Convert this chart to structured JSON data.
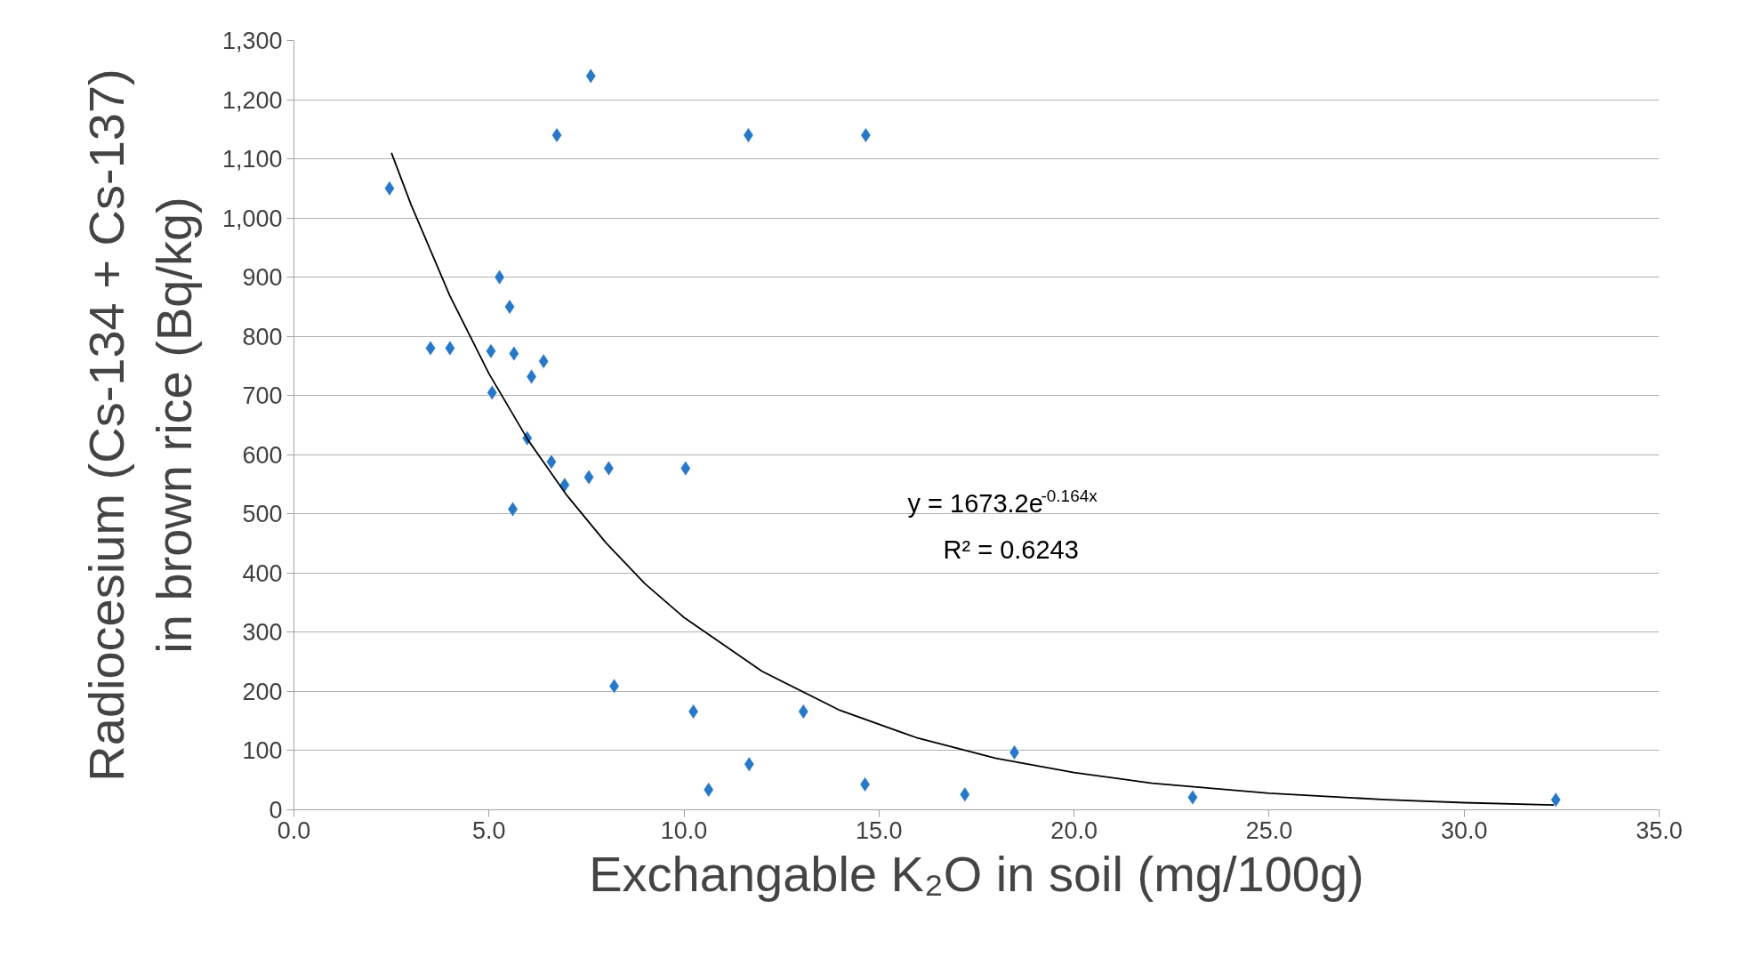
{
  "chart_data": {
    "type": "scatter",
    "xlabel": "Exchangable K₂O in soil (mg/100g)",
    "ylabel": "Radiocesium (Cs-134 + Cs-137)\nin brown rice (Bq/kg)",
    "xlim": [
      0,
      35
    ],
    "ylim": [
      0,
      1300
    ],
    "xticks": [
      {
        "value": 0,
        "label": "0.0"
      },
      {
        "value": 5,
        "label": "5.0"
      },
      {
        "value": 10,
        "label": "10.0"
      },
      {
        "value": 15,
        "label": "15.0"
      },
      {
        "value": 20,
        "label": "20.0"
      },
      {
        "value": 25,
        "label": "25.0"
      },
      {
        "value": 30,
        "label": "30.0"
      },
      {
        "value": 35,
        "label": "35.0"
      }
    ],
    "yticks": [
      0,
      100,
      200,
      300,
      400,
      500,
      600,
      700,
      800,
      900,
      {
        "value": 1000,
        "label": "1,000"
      },
      {
        "value": 1100,
        "label": "1,100"
      },
      {
        "value": 1200,
        "label": "1,200"
      },
      {
        "value": 1300,
        "label": "1,300"
      }
    ],
    "grid": "y",
    "marker": "diamond",
    "annotations": [
      "y = 1673.2e$^{-0.164x}$",
      "R² = 0.6243"
    ],
    "series": [
      {
        "color": "#2878c8",
        "x": [
          2.45,
          3.5,
          4.0,
          5.05,
          5.08,
          5.27,
          5.53,
          5.64,
          5.61,
          6.4,
          6.09,
          5.98,
          6.6,
          6.94,
          6.74,
          7.61,
          7.56,
          8.07,
          8.21,
          10.04,
          10.24,
          10.63,
          11.65,
          11.67,
          13.06,
          14.66,
          14.64,
          17.2,
          18.47,
          23.04,
          32.35
        ],
        "values": [
          1050,
          780,
          780,
          775,
          705,
          900,
          850,
          771,
          508,
          758,
          732,
          628,
          588,
          549,
          1140,
          1240,
          562,
          577,
          209,
          577,
          166,
          34,
          1140,
          77,
          166,
          1140,
          43,
          26,
          97,
          21,
          17
        ]
      },
      {
        "type": "line",
        "marker": "none",
        "color": "#000000",
        "x": [
          2.5,
          3,
          4,
          5,
          6,
          7,
          8,
          9,
          10,
          12,
          14,
          16,
          18,
          20,
          22,
          25,
          28,
          30,
          32.3
        ],
        "values": [
          1110,
          1023,
          868,
          737,
          625,
          531,
          451,
          382,
          325,
          234,
          168,
          121,
          87,
          63,
          45,
          28,
          17,
          12,
          8
        ]
      }
    ]
  }
}
